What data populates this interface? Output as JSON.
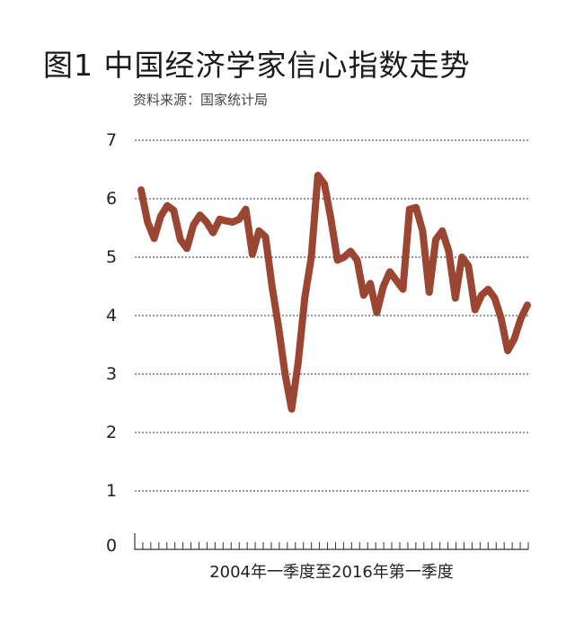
{
  "title": "图1  中国经济学家信心指数走势",
  "source": "资料来源：国家统计局",
  "chart_data": {
    "type": "line",
    "title": "图1  中国经济学家信心指数走势",
    "xlabel": "2004年一季度至2016年第一季度",
    "ylabel": "",
    "ylim": [
      0,
      7
    ],
    "yticks": [
      0,
      1,
      2,
      3,
      4,
      5,
      6,
      7
    ],
    "grid": true,
    "series_color": "#9a4632",
    "series": [
      {
        "values": [
          6.15,
          5.6,
          5.32,
          5.7,
          5.88,
          5.8,
          5.3,
          5.15,
          5.55,
          5.72,
          5.6,
          5.42,
          5.65,
          5.62,
          5.6,
          5.65,
          5.82,
          5.05,
          5.45,
          5.35,
          4.5,
          3.8,
          3.0,
          2.4,
          3.2,
          4.3,
          5.0,
          6.4,
          6.25,
          5.65,
          4.95,
          5.0,
          5.1,
          4.95,
          4.35,
          4.55,
          4.05,
          4.5,
          4.75,
          4.6,
          4.45,
          5.82,
          5.85,
          5.45,
          4.4,
          5.3,
          5.45,
          5.1,
          4.3,
          5.0,
          4.85,
          4.1,
          4.35,
          4.45,
          4.3,
          3.95,
          3.4,
          3.6,
          3.95,
          4.18
        ]
      }
    ]
  }
}
